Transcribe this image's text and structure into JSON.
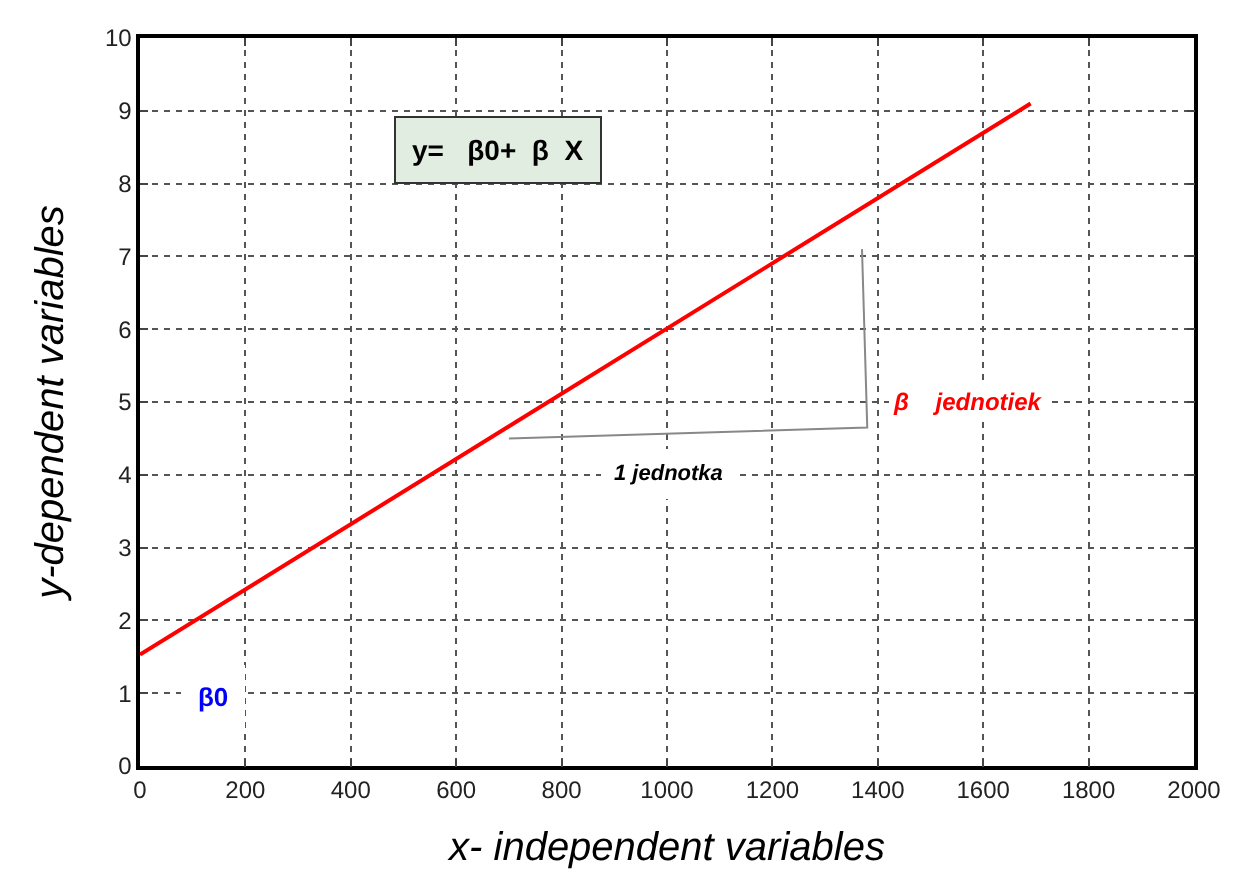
{
  "chart_data": {
    "type": "line",
    "xlabel": "x- independent variables",
    "ylabel": "y-dependent variables",
    "x": [
      0,
      1690
    ],
    "series": [
      {
        "color": "#ff0000",
        "values": [
          1.53,
          9.1
        ]
      }
    ],
    "xlim": [
      0,
      2000
    ],
    "xticks": [
      0,
      200,
      400,
      600,
      800,
      1000,
      1200,
      1400,
      1600,
      1800,
      2000
    ],
    "ylim": [
      0,
      10
    ],
    "yticks": [
      0,
      1,
      2,
      3,
      4,
      5,
      6,
      7,
      8,
      9,
      10
    ],
    "grid": true,
    "marker": "none",
    "line_style": "solid",
    "annotations": [
      "y=   β0+  β  X",
      "β    jednotiek",
      "1 jednotka",
      "β0"
    ]
  }
}
